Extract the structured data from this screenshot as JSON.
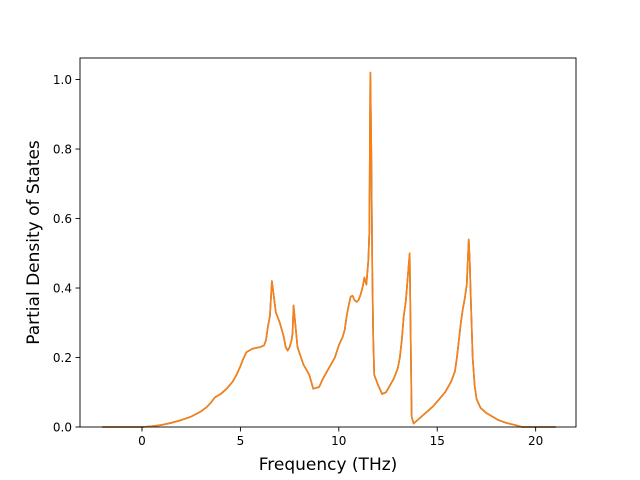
{
  "chart_data": {
    "type": "line",
    "title": "",
    "xlabel": "Frequency (THz)",
    "ylabel": "Partial Density of States",
    "xlim": [
      -3.15,
      22.05
    ],
    "ylim": [
      0.0,
      1.062
    ],
    "x_ticks": [
      "0",
      "5",
      "10",
      "15",
      "20"
    ],
    "y_ticks": [
      "0.0",
      "0.2",
      "0.4",
      "0.6",
      "0.8",
      "1.0"
    ],
    "grid": false,
    "legend": "none",
    "series": [
      {
        "color": "#1f77b4",
        "x": [
          -2.0,
          0.0,
          0.5,
          1.0,
          1.5,
          2.0,
          2.5,
          3.0,
          3.3,
          3.5,
          3.7,
          4.0,
          4.3,
          4.6,
          4.8,
          5.0,
          5.1,
          5.3,
          5.6,
          6.0,
          6.2,
          6.3,
          6.4,
          6.5,
          6.6,
          6.8,
          7.0,
          7.1,
          7.2,
          7.3,
          7.4,
          7.5,
          7.55,
          7.6,
          7.65,
          7.7,
          7.9,
          8.2,
          8.5,
          8.7,
          9.0,
          9.2,
          9.5,
          9.8,
          10.0,
          10.2,
          10.3,
          10.4,
          10.5,
          10.6,
          10.7,
          10.8,
          10.9,
          11.0,
          11.1,
          11.2,
          11.3,
          11.4,
          11.5,
          11.55,
          11.6,
          11.65,
          11.7,
          11.75,
          11.8,
          12.0,
          12.2,
          12.4,
          12.6,
          12.8,
          13.0,
          13.1,
          13.2,
          13.3,
          13.4,
          13.5,
          13.6,
          13.7,
          13.8,
          14.0,
          14.2,
          14.5,
          14.8,
          15.1,
          15.4,
          15.7,
          15.9,
          16.0,
          16.2,
          16.3,
          16.4,
          16.5,
          16.6,
          16.65,
          16.7,
          16.8,
          16.9,
          17.0,
          17.2,
          17.5,
          17.8,
          18.1,
          18.5,
          19.0,
          19.3,
          20.0,
          21.0
        ],
        "y": [
          0.0,
          0.0,
          0.002,
          0.006,
          0.012,
          0.02,
          0.03,
          0.045,
          0.058,
          0.07,
          0.085,
          0.095,
          0.11,
          0.13,
          0.15,
          0.175,
          0.19,
          0.215,
          0.225,
          0.23,
          0.235,
          0.25,
          0.29,
          0.32,
          0.42,
          0.33,
          0.3,
          0.28,
          0.26,
          0.23,
          0.22,
          0.23,
          0.24,
          0.25,
          0.27,
          0.35,
          0.23,
          0.18,
          0.15,
          0.11,
          0.115,
          0.14,
          0.17,
          0.2,
          0.235,
          0.26,
          0.28,
          0.32,
          0.35,
          0.375,
          0.378,
          0.365,
          0.36,
          0.365,
          0.38,
          0.4,
          0.43,
          0.41,
          0.48,
          0.56,
          1.02,
          0.8,
          0.45,
          0.25,
          0.15,
          0.12,
          0.095,
          0.1,
          0.12,
          0.14,
          0.17,
          0.2,
          0.25,
          0.32,
          0.36,
          0.43,
          0.5,
          0.03,
          0.01,
          0.02,
          0.03,
          0.045,
          0.06,
          0.08,
          0.1,
          0.13,
          0.16,
          0.2,
          0.3,
          0.34,
          0.37,
          0.41,
          0.54,
          0.48,
          0.38,
          0.2,
          0.12,
          0.08,
          0.055,
          0.04,
          0.03,
          0.02,
          0.012,
          0.005,
          0.0,
          0.0,
          0.0
        ]
      },
      {
        "color": "#ff7f0e",
        "x": [
          -2.0,
          0.0,
          0.5,
          1.0,
          1.5,
          2.0,
          2.5,
          3.0,
          3.3,
          3.5,
          3.7,
          4.0,
          4.3,
          4.6,
          4.8,
          5.0,
          5.1,
          5.3,
          5.6,
          6.0,
          6.2,
          6.3,
          6.4,
          6.5,
          6.6,
          6.8,
          7.0,
          7.1,
          7.2,
          7.3,
          7.4,
          7.5,
          7.55,
          7.6,
          7.65,
          7.7,
          7.9,
          8.2,
          8.5,
          8.7,
          9.0,
          9.2,
          9.5,
          9.8,
          10.0,
          10.2,
          10.3,
          10.4,
          10.5,
          10.6,
          10.7,
          10.8,
          10.9,
          11.0,
          11.1,
          11.2,
          11.3,
          11.4,
          11.5,
          11.55,
          11.6,
          11.65,
          11.7,
          11.75,
          11.8,
          12.0,
          12.2,
          12.4,
          12.6,
          12.8,
          13.0,
          13.1,
          13.2,
          13.3,
          13.4,
          13.5,
          13.6,
          13.7,
          13.8,
          14.0,
          14.2,
          14.5,
          14.8,
          15.1,
          15.4,
          15.7,
          15.9,
          16.0,
          16.2,
          16.3,
          16.4,
          16.5,
          16.6,
          16.65,
          16.7,
          16.8,
          16.9,
          17.0,
          17.2,
          17.5,
          17.8,
          18.1,
          18.5,
          19.0,
          19.3,
          20.0,
          21.0
        ],
        "y": [
          0.0,
          0.0,
          0.002,
          0.006,
          0.012,
          0.02,
          0.03,
          0.045,
          0.058,
          0.07,
          0.085,
          0.095,
          0.11,
          0.13,
          0.15,
          0.175,
          0.19,
          0.215,
          0.225,
          0.23,
          0.235,
          0.25,
          0.29,
          0.32,
          0.42,
          0.33,
          0.3,
          0.28,
          0.26,
          0.23,
          0.22,
          0.23,
          0.24,
          0.25,
          0.27,
          0.35,
          0.23,
          0.18,
          0.15,
          0.11,
          0.115,
          0.14,
          0.17,
          0.2,
          0.235,
          0.26,
          0.28,
          0.32,
          0.35,
          0.375,
          0.378,
          0.365,
          0.36,
          0.365,
          0.38,
          0.4,
          0.43,
          0.41,
          0.48,
          0.56,
          1.02,
          0.8,
          0.45,
          0.25,
          0.15,
          0.12,
          0.095,
          0.1,
          0.12,
          0.14,
          0.17,
          0.2,
          0.25,
          0.32,
          0.36,
          0.43,
          0.5,
          0.03,
          0.01,
          0.02,
          0.03,
          0.045,
          0.06,
          0.08,
          0.1,
          0.13,
          0.16,
          0.2,
          0.3,
          0.34,
          0.37,
          0.41,
          0.54,
          0.48,
          0.38,
          0.2,
          0.12,
          0.08,
          0.055,
          0.04,
          0.03,
          0.02,
          0.012,
          0.005,
          0.0,
          0.0,
          0.0
        ]
      }
    ]
  }
}
